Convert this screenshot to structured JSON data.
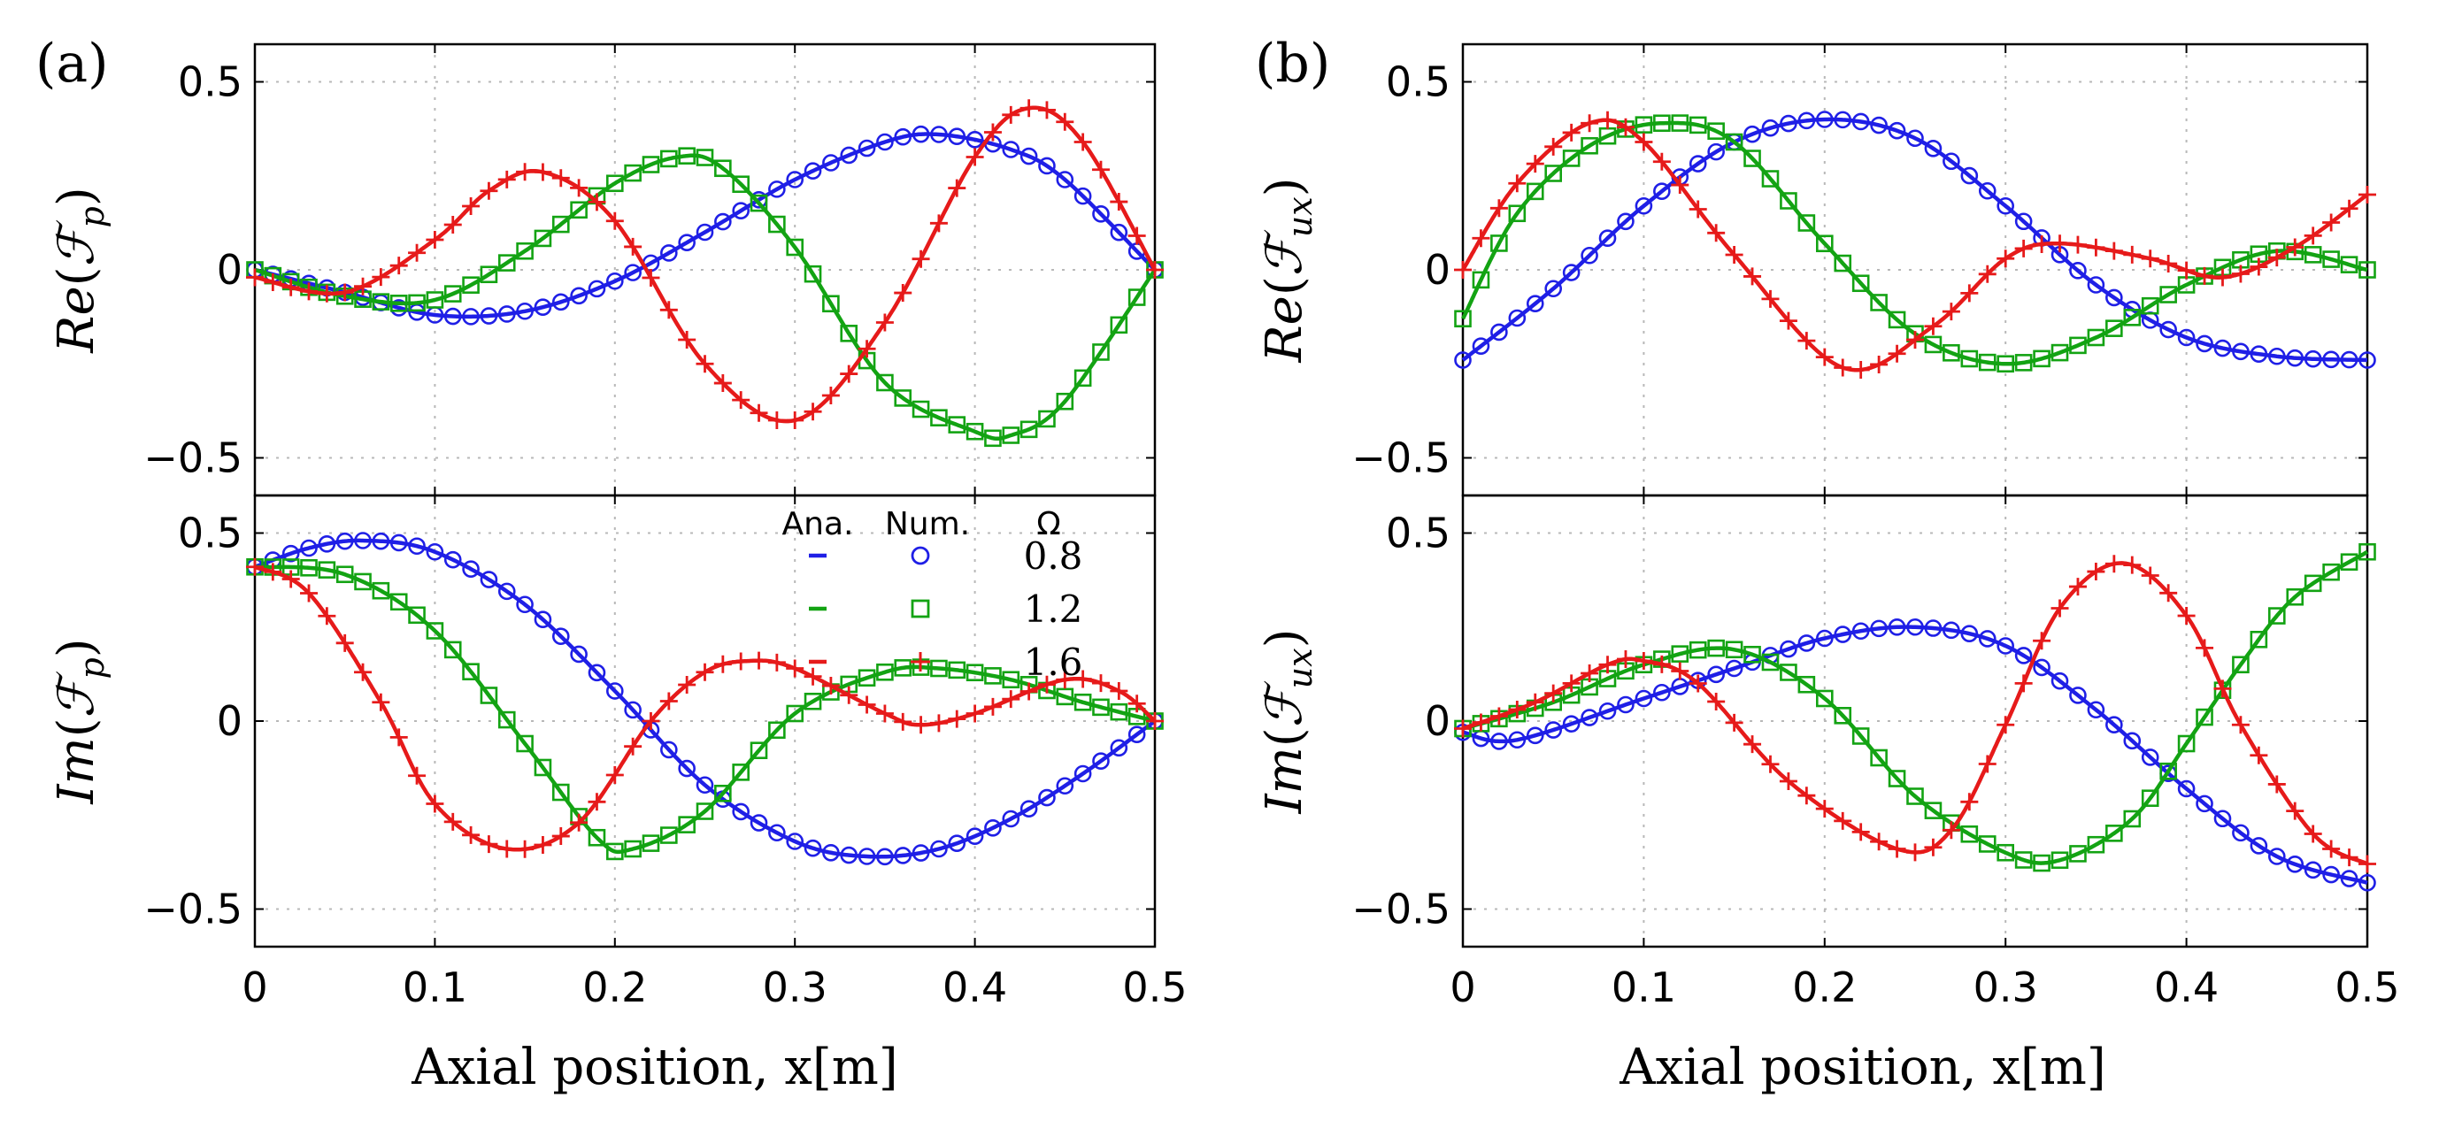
{
  "figure": {
    "xlabel": "Axial position, x[m]",
    "panel_tags": [
      "(a)",
      "(b)"
    ],
    "legend": {
      "headers": [
        "Ana.",
        "Num.",
        "Ω"
      ],
      "entries": [
        {
          "omega": "0.8",
          "color": "#1f1fe6"
        },
        {
          "omega": "1.2",
          "color": "#13a313"
        },
        {
          "omega": "1.6",
          "color": "#e61a1a"
        }
      ]
    },
    "colors": {
      "omega_0_8": "#1f1fe6",
      "omega_1_2": "#13a313",
      "omega_1_6": "#e61a1a"
    }
  },
  "chart_data": [
    {
      "id": "a-top",
      "type": "line",
      "ylabel": "Re(F_p)",
      "ylabel_sub": "p",
      "xlim": [
        0,
        0.5
      ],
      "ylim": [
        -0.6,
        0.6
      ],
      "xticks": [
        "0",
        "0.1",
        "0.2",
        "0.3",
        "0.4",
        "0.5"
      ],
      "yticks": [
        "−0.5",
        "0",
        "0.5"
      ],
      "series": [
        {
          "name": "0.8",
          "marker": "circle",
          "x": [
            0,
            0.05,
            0.1,
            0.15,
            0.2,
            0.25,
            0.3,
            0.35,
            0.38,
            0.42,
            0.45,
            0.5
          ],
          "y": [
            0,
            -0.06,
            -0.12,
            -0.11,
            -0.03,
            0.1,
            0.24,
            0.34,
            0.36,
            0.32,
            0.24,
            0
          ]
        },
        {
          "name": "1.2",
          "marker": "square",
          "x": [
            0,
            0.05,
            0.1,
            0.15,
            0.2,
            0.235,
            0.26,
            0.3,
            0.35,
            0.4,
            0.42,
            0.45,
            0.5
          ],
          "y": [
            0,
            -0.07,
            -0.08,
            0.05,
            0.23,
            0.3,
            0.27,
            0.06,
            -0.3,
            -0.43,
            -0.44,
            -0.35,
            0
          ]
        },
        {
          "name": "1.6",
          "marker": "plus",
          "x": [
            0,
            0.05,
            0.1,
            0.13,
            0.16,
            0.2,
            0.25,
            0.3,
            0.35,
            0.4,
            0.43,
            0.46,
            0.5
          ],
          "y": [
            -0.02,
            -0.06,
            0.08,
            0.21,
            0.26,
            0.13,
            -0.25,
            -0.4,
            -0.14,
            0.3,
            0.43,
            0.34,
            0
          ]
        }
      ]
    },
    {
      "id": "a-bottom",
      "type": "line",
      "ylabel": "Im(F_p)",
      "ylabel_sub": "p",
      "xlim": [
        0,
        0.5
      ],
      "ylim": [
        -0.6,
        0.6
      ],
      "xticks": [
        "0",
        "0.1",
        "0.2",
        "0.3",
        "0.4",
        "0.5"
      ],
      "yticks": [
        "−0.5",
        "0",
        "0.5"
      ],
      "series": [
        {
          "name": "0.8",
          "marker": "circle",
          "x": [
            0,
            0.03,
            0.06,
            0.1,
            0.15,
            0.2,
            0.25,
            0.3,
            0.34,
            0.38,
            0.42,
            0.46,
            0.5
          ],
          "y": [
            0.41,
            0.46,
            0.48,
            0.45,
            0.31,
            0.08,
            -0.17,
            -0.32,
            -0.36,
            -0.34,
            -0.26,
            -0.14,
            0
          ]
        },
        {
          "name": "1.2",
          "marker": "square",
          "x": [
            0,
            0.05,
            0.1,
            0.15,
            0.19,
            0.21,
            0.25,
            0.3,
            0.35,
            0.38,
            0.42,
            0.46,
            0.5
          ],
          "y": [
            0.41,
            0.39,
            0.24,
            -0.06,
            -0.31,
            -0.34,
            -0.24,
            0.02,
            0.13,
            0.14,
            0.11,
            0.05,
            0
          ]
        },
        {
          "name": "1.6",
          "marker": "plus",
          "x": [
            0,
            0.03,
            0.07,
            0.1,
            0.14,
            0.18,
            0.22,
            0.25,
            0.275,
            0.3,
            0.35,
            0.37,
            0.4,
            0.45,
            0.48,
            0.5
          ],
          "y": [
            0.41,
            0.34,
            0.05,
            -0.22,
            -0.34,
            -0.27,
            0.0,
            0.13,
            0.16,
            0.14,
            0.02,
            -0.01,
            0.02,
            0.11,
            0.08,
            0
          ]
        }
      ]
    },
    {
      "id": "b-top",
      "type": "line",
      "ylabel": "Re(F_ux)",
      "ylabel_sub": "u",
      "xlim": [
        0,
        0.5
      ],
      "ylim": [
        -0.6,
        0.6
      ],
      "xticks": [
        "0",
        "0.1",
        "0.2",
        "0.3",
        "0.4",
        "0.5"
      ],
      "yticks": [
        "−0.5",
        "0",
        "0.5"
      ],
      "series": [
        {
          "name": "0.8",
          "marker": "circle",
          "x": [
            0,
            0.05,
            0.1,
            0.15,
            0.2,
            0.25,
            0.3,
            0.35,
            0.4,
            0.45,
            0.5
          ],
          "y": [
            -0.24,
            -0.05,
            0.17,
            0.34,
            0.4,
            0.35,
            0.17,
            -0.04,
            -0.18,
            -0.23,
            -0.24
          ]
        },
        {
          "name": "1.2",
          "marker": "square",
          "x": [
            0,
            0.03,
            0.07,
            0.11,
            0.15,
            0.2,
            0.25,
            0.3,
            0.35,
            0.4,
            0.45,
            0.5
          ],
          "y": [
            -0.13,
            0.15,
            0.33,
            0.39,
            0.34,
            0.07,
            -0.17,
            -0.25,
            -0.18,
            -0.04,
            0.05,
            0
          ]
        },
        {
          "name": "1.6",
          "marker": "plus",
          "x": [
            0,
            0.03,
            0.07,
            0.1,
            0.15,
            0.21,
            0.26,
            0.3,
            0.33,
            0.38,
            0.42,
            0.46,
            0.5
          ],
          "y": [
            0,
            0.23,
            0.39,
            0.34,
            0.04,
            -0.26,
            -0.15,
            0.03,
            0.07,
            0.03,
            -0.02,
            0.06,
            0.2
          ]
        }
      ]
    },
    {
      "id": "b-bottom",
      "type": "line",
      "ylabel": "Im(F_ux)",
      "ylabel_sub": "u",
      "xlim": [
        0,
        0.5
      ],
      "ylim": [
        -0.6,
        0.6
      ],
      "xticks": [
        "0",
        "0.1",
        "0.2",
        "0.3",
        "0.4",
        "0.5"
      ],
      "yticks": [
        "−0.5",
        "0",
        "0.5"
      ],
      "series": [
        {
          "name": "0.8",
          "marker": "circle",
          "x": [
            0,
            0.03,
            0.1,
            0.15,
            0.2,
            0.25,
            0.3,
            0.35,
            0.4,
            0.45,
            0.5
          ],
          "y": [
            -0.03,
            -0.05,
            0.06,
            0.14,
            0.22,
            0.25,
            0.2,
            0.03,
            -0.18,
            -0.36,
            -0.43
          ]
        },
        {
          "name": "1.2",
          "marker": "square",
          "x": [
            0,
            0.05,
            0.1,
            0.15,
            0.2,
            0.25,
            0.3,
            0.33,
            0.37,
            0.4,
            0.43,
            0.46,
            0.5
          ],
          "y": [
            -0.02,
            0.05,
            0.15,
            0.19,
            0.06,
            -0.2,
            -0.35,
            -0.37,
            -0.26,
            -0.06,
            0.15,
            0.33,
            0.45
          ]
        },
        {
          "name": "1.6",
          "marker": "plus",
          "x": [
            0,
            0.04,
            0.08,
            0.1,
            0.13,
            0.18,
            0.24,
            0.27,
            0.3,
            0.33,
            0.365,
            0.4,
            0.43,
            0.47,
            0.5
          ],
          "y": [
            -0.02,
            0.05,
            0.15,
            0.16,
            0.1,
            -0.16,
            -0.34,
            -0.29,
            -0.01,
            0.3,
            0.42,
            0.28,
            -0.01,
            -0.3,
            -0.38
          ]
        }
      ]
    }
  ]
}
